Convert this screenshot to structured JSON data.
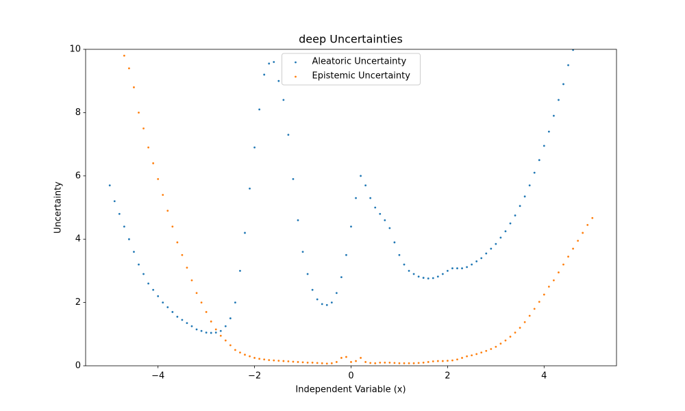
{
  "chart_data": {
    "type": "scatter",
    "title": "deep Uncertainties",
    "x_label": "Independent Variable (x)",
    "y_label": "Uncertainty",
    "x": [
      -5.0,
      -4.9,
      -4.8,
      -4.7,
      -4.6,
      -4.5,
      -4.4,
      -4.3,
      -4.2,
      -4.1,
      -4.0,
      -3.9,
      -3.8,
      -3.7,
      -3.6,
      -3.5,
      -3.4,
      -3.3,
      -3.2,
      -3.1,
      -3.0,
      -2.9,
      -2.8,
      -2.7,
      -2.6,
      -2.5,
      -2.4,
      -2.3,
      -2.2,
      -2.1,
      -2.0,
      -1.9,
      -1.8,
      -1.7,
      -1.6,
      -1.5,
      -1.4,
      -1.3,
      -1.2,
      -1.1,
      -1.0,
      -0.9,
      -0.8,
      -0.7,
      -0.6,
      -0.5,
      -0.4,
      -0.3,
      -0.2,
      -0.1,
      0,
      0.1,
      0.2,
      0.3,
      0.4,
      0.5,
      0.6,
      0.7,
      0.8,
      0.9,
      1.0,
      1.1,
      1.2,
      1.3,
      1.4,
      1.5,
      1.6,
      1.7,
      1.8,
      1.9,
      2.0,
      2.1,
      2.2,
      2.3,
      2.4,
      2.5,
      2.6,
      2.7,
      2.8,
      2.9,
      3.0,
      3.1,
      3.2,
      3.3,
      3.4,
      3.5,
      3.6,
      3.7,
      3.8,
      3.9,
      4.0,
      4.1,
      4.2,
      4.3,
      4.4,
      4.5,
      4.6,
      4.7,
      4.8,
      4.9,
      5.0
    ],
    "series": [
      {
        "name": "Aleatoric Uncertainty",
        "color": "#1f77b4",
        "values": [
          5.7,
          5.2,
          4.8,
          4.4,
          4.0,
          3.6,
          3.2,
          2.9,
          2.6,
          2.4,
          2.2,
          2.0,
          1.85,
          1.7,
          1.55,
          1.45,
          1.35,
          1.25,
          1.15,
          1.1,
          1.05,
          1.04,
          1.05,
          1.1,
          1.25,
          1.5,
          2.0,
          3.0,
          4.2,
          5.6,
          6.9,
          8.1,
          9.2,
          9.55,
          9.6,
          9.0,
          8.4,
          7.3,
          5.9,
          4.6,
          3.6,
          2.9,
          2.4,
          2.1,
          1.95,
          1.92,
          2.0,
          2.3,
          2.8,
          3.5,
          4.4,
          5.3,
          6.0,
          5.7,
          5.3,
          5.0,
          4.8,
          4.6,
          4.35,
          3.9,
          3.5,
          3.2,
          3.0,
          2.9,
          2.82,
          2.78,
          2.76,
          2.77,
          2.82,
          2.9,
          3.0,
          3.08,
          3.08,
          3.08,
          3.12,
          3.2,
          3.3,
          3.4,
          3.55,
          3.7,
          3.85,
          4.05,
          4.25,
          4.5,
          4.75,
          5.05,
          5.35,
          5.7,
          6.1,
          6.5,
          6.95,
          7.4,
          7.9,
          8.4,
          8.9,
          9.5,
          9.98,
          null,
          null,
          null,
          null
        ]
      },
      {
        "name": "Epistemic Uncertainty",
        "color": "#ff7f0e",
        "values": [
          null,
          null,
          null,
          9.8,
          9.4,
          8.8,
          8.0,
          7.5,
          6.9,
          6.4,
          5.9,
          5.4,
          4.9,
          4.4,
          3.9,
          3.5,
          3.1,
          2.7,
          2.3,
          2.0,
          1.7,
          1.4,
          1.15,
          0.95,
          0.8,
          0.65,
          0.5,
          0.42,
          0.35,
          0.3,
          0.25,
          0.22,
          0.2,
          0.18,
          0.17,
          0.16,
          0.15,
          0.14,
          0.13,
          0.12,
          0.11,
          0.1,
          0.1,
          0.09,
          0.08,
          0.07,
          0.08,
          0.12,
          0.25,
          0.28,
          0.12,
          0.15,
          0.25,
          0.12,
          0.09,
          0.08,
          0.1,
          0.1,
          0.1,
          0.09,
          0.08,
          0.08,
          0.08,
          0.08,
          0.09,
          0.1,
          0.12,
          0.14,
          0.15,
          0.15,
          0.16,
          0.17,
          0.2,
          0.25,
          0.3,
          0.33,
          0.37,
          0.42,
          0.47,
          0.53,
          0.6,
          0.7,
          0.8,
          0.92,
          1.05,
          1.2,
          1.38,
          1.58,
          1.8,
          2.02,
          2.25,
          2.5,
          2.7,
          2.95,
          3.2,
          3.45,
          3.7,
          3.95,
          4.2,
          4.45,
          4.67
        ]
      }
    ],
    "xlim": [
      -5.5,
      5.5
    ],
    "ylim": [
      0,
      10
    ],
    "xticks": [
      {
        "value": -4,
        "label": "−4"
      },
      {
        "value": -2,
        "label": "−2"
      },
      0,
      2,
      4
    ],
    "yticks": [
      0,
      2,
      4,
      6,
      8,
      10
    ],
    "legend": "upper center"
  }
}
